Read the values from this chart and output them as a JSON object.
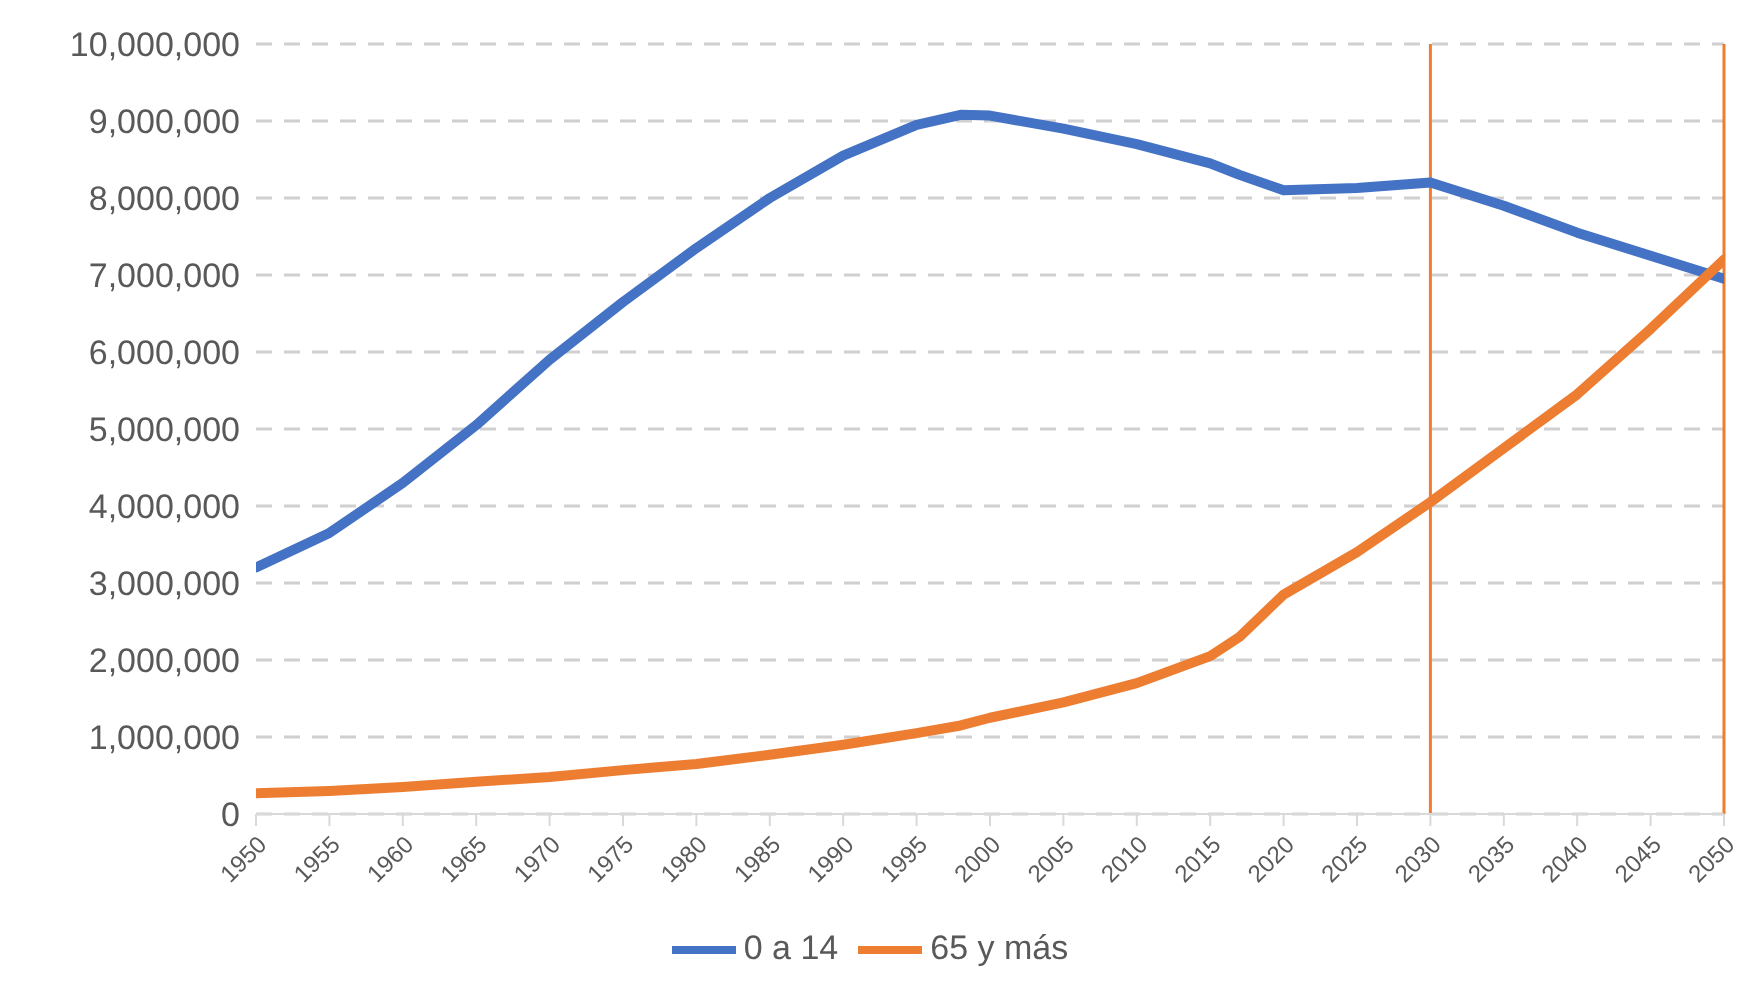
{
  "chart_data": {
    "type": "line",
    "x": [
      1950,
      1955,
      1960,
      1965,
      1970,
      1975,
      1980,
      1985,
      1990,
      1995,
      1998,
      2000,
      2005,
      2010,
      2015,
      2017,
      2020,
      2025,
      2030,
      2035,
      2040,
      2045,
      2050
    ],
    "series": [
      {
        "name": "0 a 14",
        "color": "#4472c4",
        "values": [
          3200000,
          3650000,
          4300000,
          5050000,
          5900000,
          6650000,
          7350000,
          8000000,
          8550000,
          8950000,
          9080000,
          9070000,
          8900000,
          8700000,
          8450000,
          8300000,
          8100000,
          8130000,
          8200000,
          7900000,
          7550000,
          7250000,
          6950000
        ]
      },
      {
        "name": "65 y más",
        "color": "#ed7d31",
        "values": [
          270000,
          300000,
          350000,
          420000,
          480000,
          570000,
          650000,
          770000,
          900000,
          1050000,
          1150000,
          1250000,
          1450000,
          1700000,
          2050000,
          2300000,
          2850000,
          3400000,
          4050000,
          4750000,
          5450000,
          6300000,
          7200000
        ]
      }
    ],
    "xlim": [
      1950,
      2050
    ],
    "xticks": [
      1950,
      1955,
      1960,
      1965,
      1970,
      1975,
      1980,
      1985,
      1990,
      1995,
      2000,
      2005,
      2010,
      2015,
      2020,
      2025,
      2030,
      2035,
      2040,
      2045,
      2050
    ],
    "ylim": [
      0,
      10000000
    ],
    "yticks": [
      0,
      {
        "value": 1000000,
        "label": "1,000,000"
      },
      {
        "value": 2000000,
        "label": "2,000,000"
      },
      {
        "value": 3000000,
        "label": "3,000,000"
      },
      {
        "value": 4000000,
        "label": "4,000,000"
      },
      {
        "value": 5000000,
        "label": "5,000,000"
      },
      {
        "value": 6000000,
        "label": "6,000,000"
      },
      {
        "value": 7000000,
        "label": "7,000,000"
      },
      {
        "value": 8000000,
        "label": "8,000,000"
      },
      {
        "value": 9000000,
        "label": "9,000,000"
      },
      {
        "value": 10000000,
        "label": "10,000,000"
      }
    ],
    "grid": "y",
    "legend": "bottom",
    "marker": "none",
    "line_style": "solid",
    "ref_lines": [
      {
        "axis": "x",
        "value": 2030,
        "color": "#ed7d31"
      },
      {
        "axis": "x",
        "value": 2050,
        "color": "#ed7d31"
      }
    ]
  }
}
